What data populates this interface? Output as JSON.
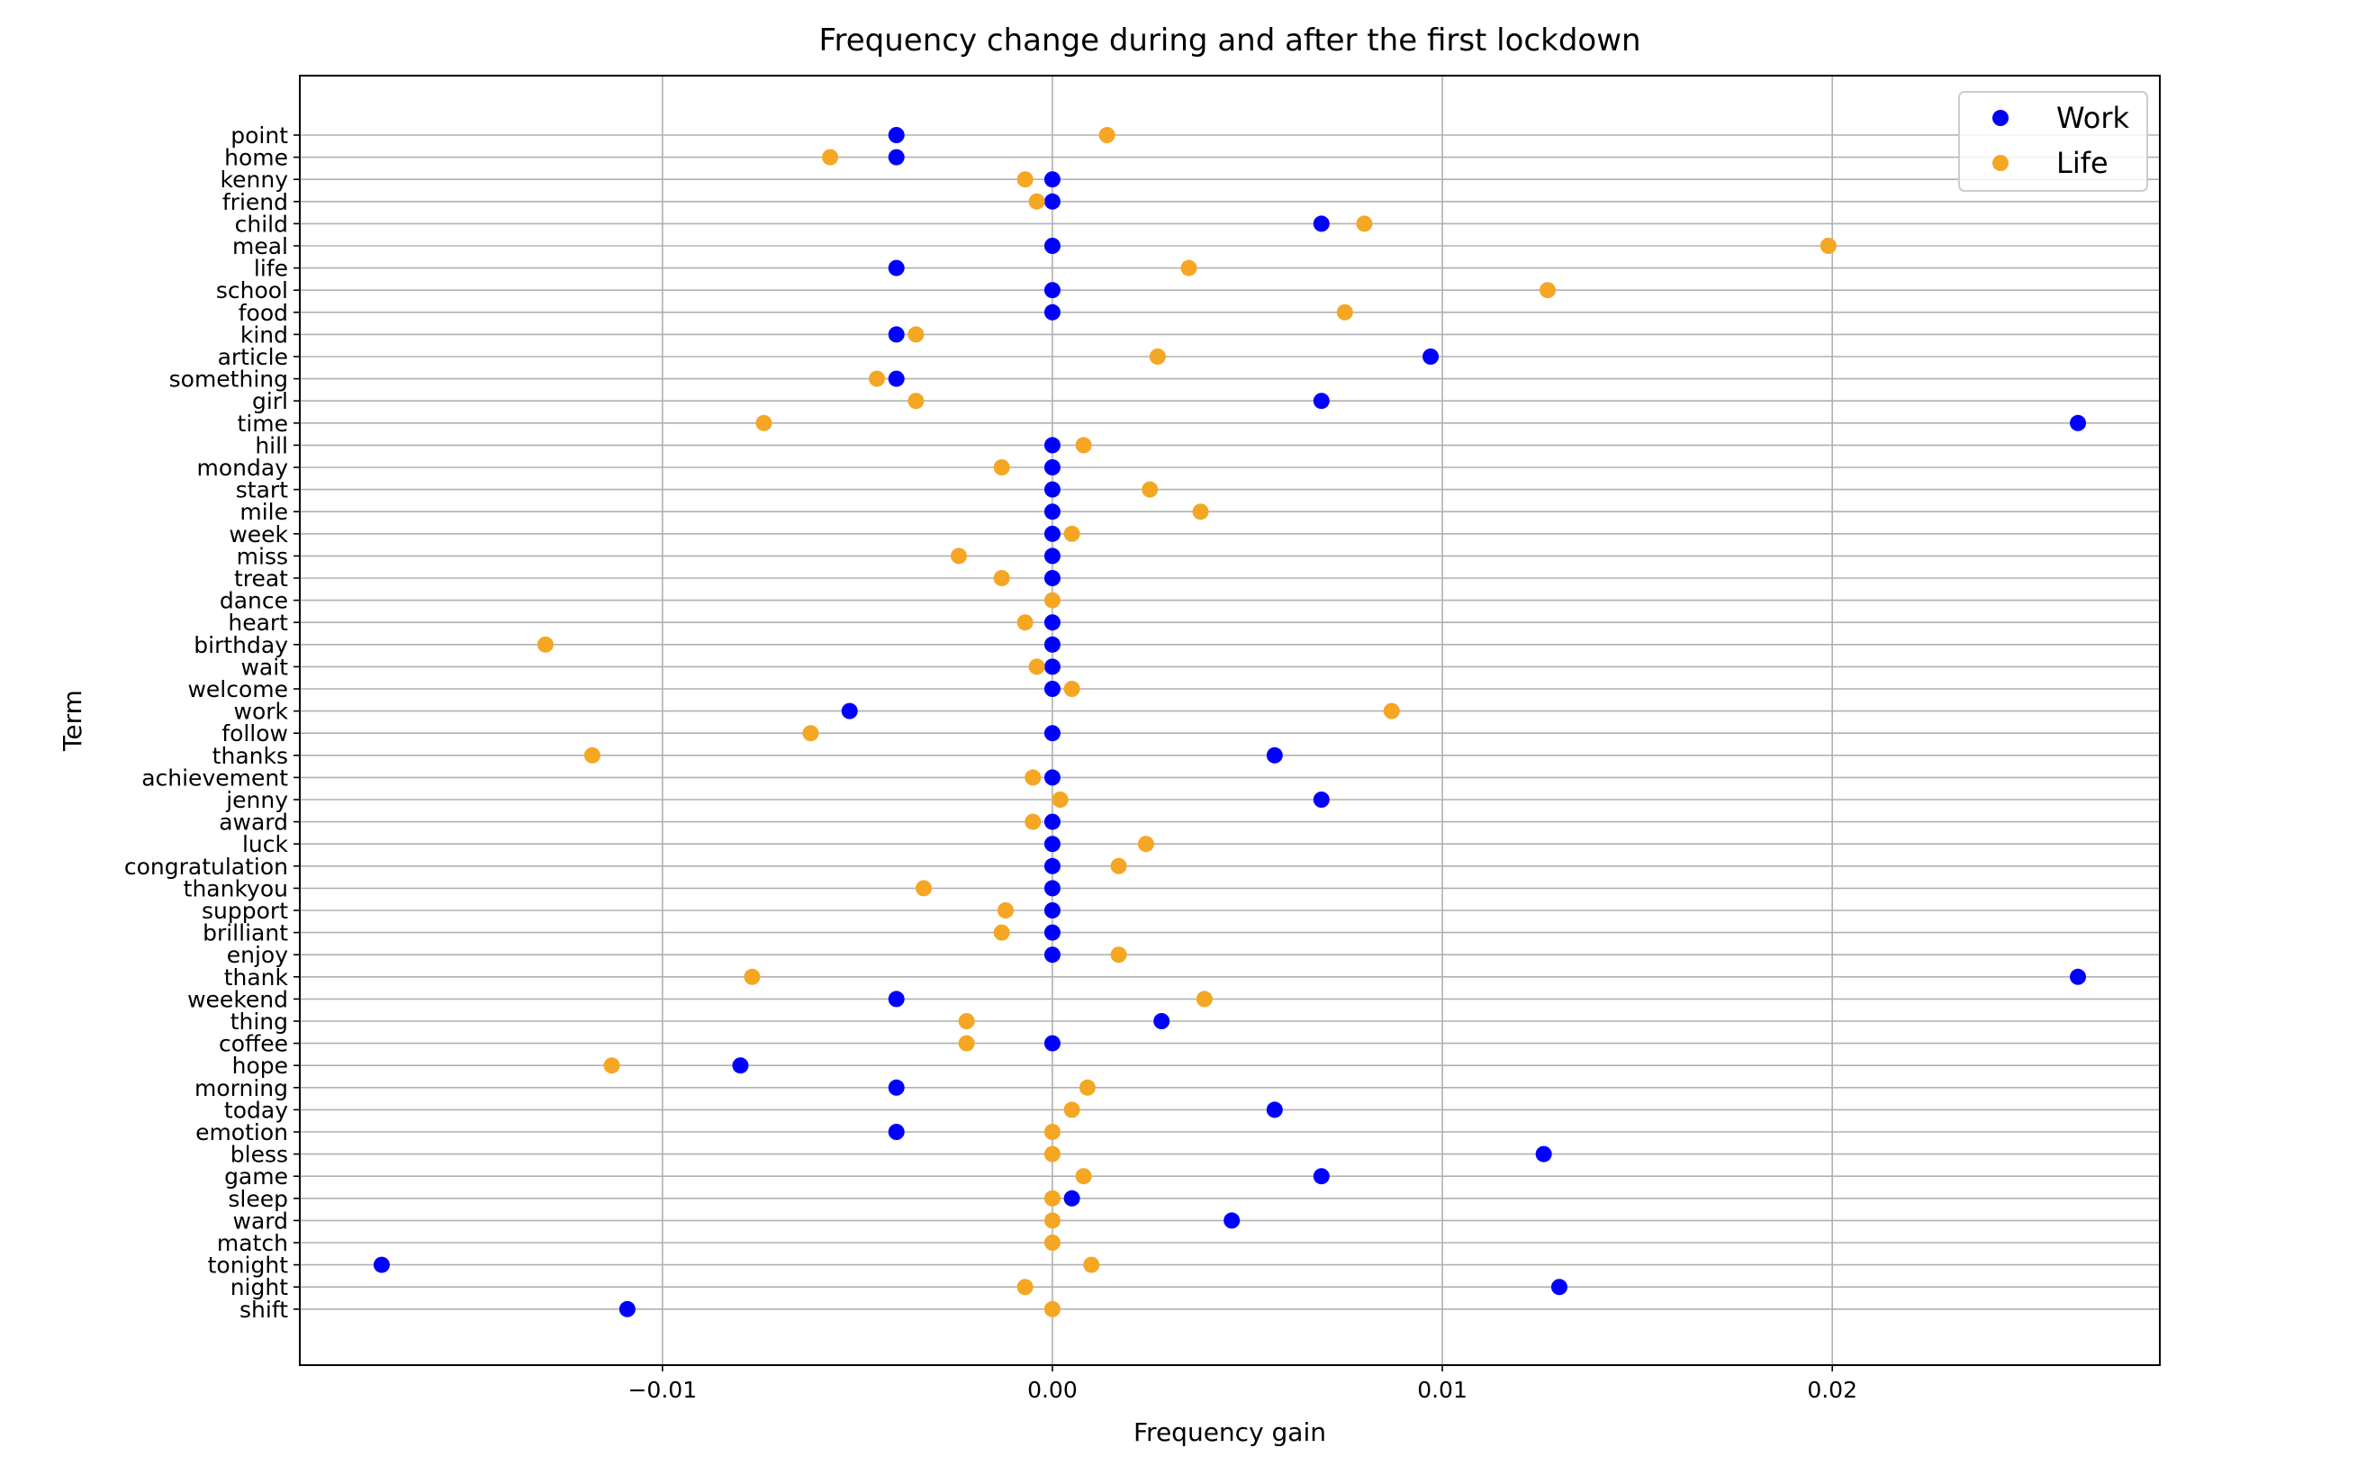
{
  "chart_data": {
    "type": "scatter",
    "title": "Frequency change during and after the first lockdown",
    "xlabel": "Frequency gain",
    "ylabel": "Term",
    "xlim": [
      -0.0193,
      0.0284
    ],
    "x_ticks": [
      -0.01,
      0.0,
      0.01,
      0.02
    ],
    "x_tick_labels": [
      "−0.01",
      "0.00",
      "0.01",
      "0.02"
    ],
    "grid": true,
    "legend_position": "top-right",
    "categories": [
      "point",
      "home",
      "kenny",
      "friend",
      "child",
      "meal",
      "life",
      "school",
      "food",
      "kind",
      "article",
      "something",
      "girl",
      "time",
      "hill",
      "monday",
      "start",
      "mile",
      "week",
      "miss",
      "treat",
      "dance",
      "heart",
      "birthday",
      "wait",
      "welcome",
      "work",
      "follow",
      "thanks",
      "achievement",
      "jenny",
      "award",
      "luck",
      "congratulation",
      "thankyou",
      "support",
      "brilliant",
      "enjoy",
      "thank",
      "weekend",
      "thing",
      "coffee",
      "hope",
      "morning",
      "today",
      "emotion",
      "bless",
      "game",
      "sleep",
      "ward",
      "match",
      "tonight",
      "night",
      "shift"
    ],
    "series": [
      {
        "name": "Work",
        "color": "#0000ff",
        "values": [
          -0.004,
          -0.004,
          0,
          0,
          0.0069,
          0,
          -0.004,
          0,
          0,
          -0.004,
          0.0097,
          -0.004,
          0.0069,
          0.0263,
          0,
          0,
          0,
          0,
          0,
          0,
          0,
          null,
          0,
          0,
          0,
          0,
          -0.0052,
          0,
          0.0057,
          0,
          0.0069,
          0,
          0,
          0,
          0,
          0,
          0,
          0,
          0.0263,
          -0.004,
          0.0028,
          0,
          -0.008,
          -0.004,
          0.0057,
          -0.004,
          0.0126,
          0.0069,
          0.0005,
          0.0046,
          null,
          -0.0172,
          0.013,
          -0.0109
        ]
      },
      {
        "name": "Life",
        "color": "#f5a623",
        "values": [
          0.0014,
          -0.0057,
          -0.0007,
          -0.0004,
          0.008,
          0.0199,
          0.0035,
          0.0127,
          0.0075,
          -0.0035,
          0.0027,
          -0.0045,
          -0.0035,
          -0.0074,
          0.0008,
          -0.0013,
          0.0025,
          0.0038,
          0.0005,
          -0.0024,
          -0.0013,
          0,
          -0.0007,
          -0.013,
          -0.0004,
          0.0005,
          0.0087,
          -0.0062,
          -0.0118,
          -0.0005,
          0.0002,
          -0.0005,
          0.0024,
          0.0017,
          -0.0033,
          -0.0012,
          -0.0013,
          0.0017,
          -0.0077,
          0.0039,
          -0.0022,
          -0.0022,
          -0.0113,
          0.0009,
          0.0005,
          0,
          0,
          0.0008,
          0,
          0,
          0,
          0.001,
          -0.0007,
          0
        ]
      }
    ]
  }
}
